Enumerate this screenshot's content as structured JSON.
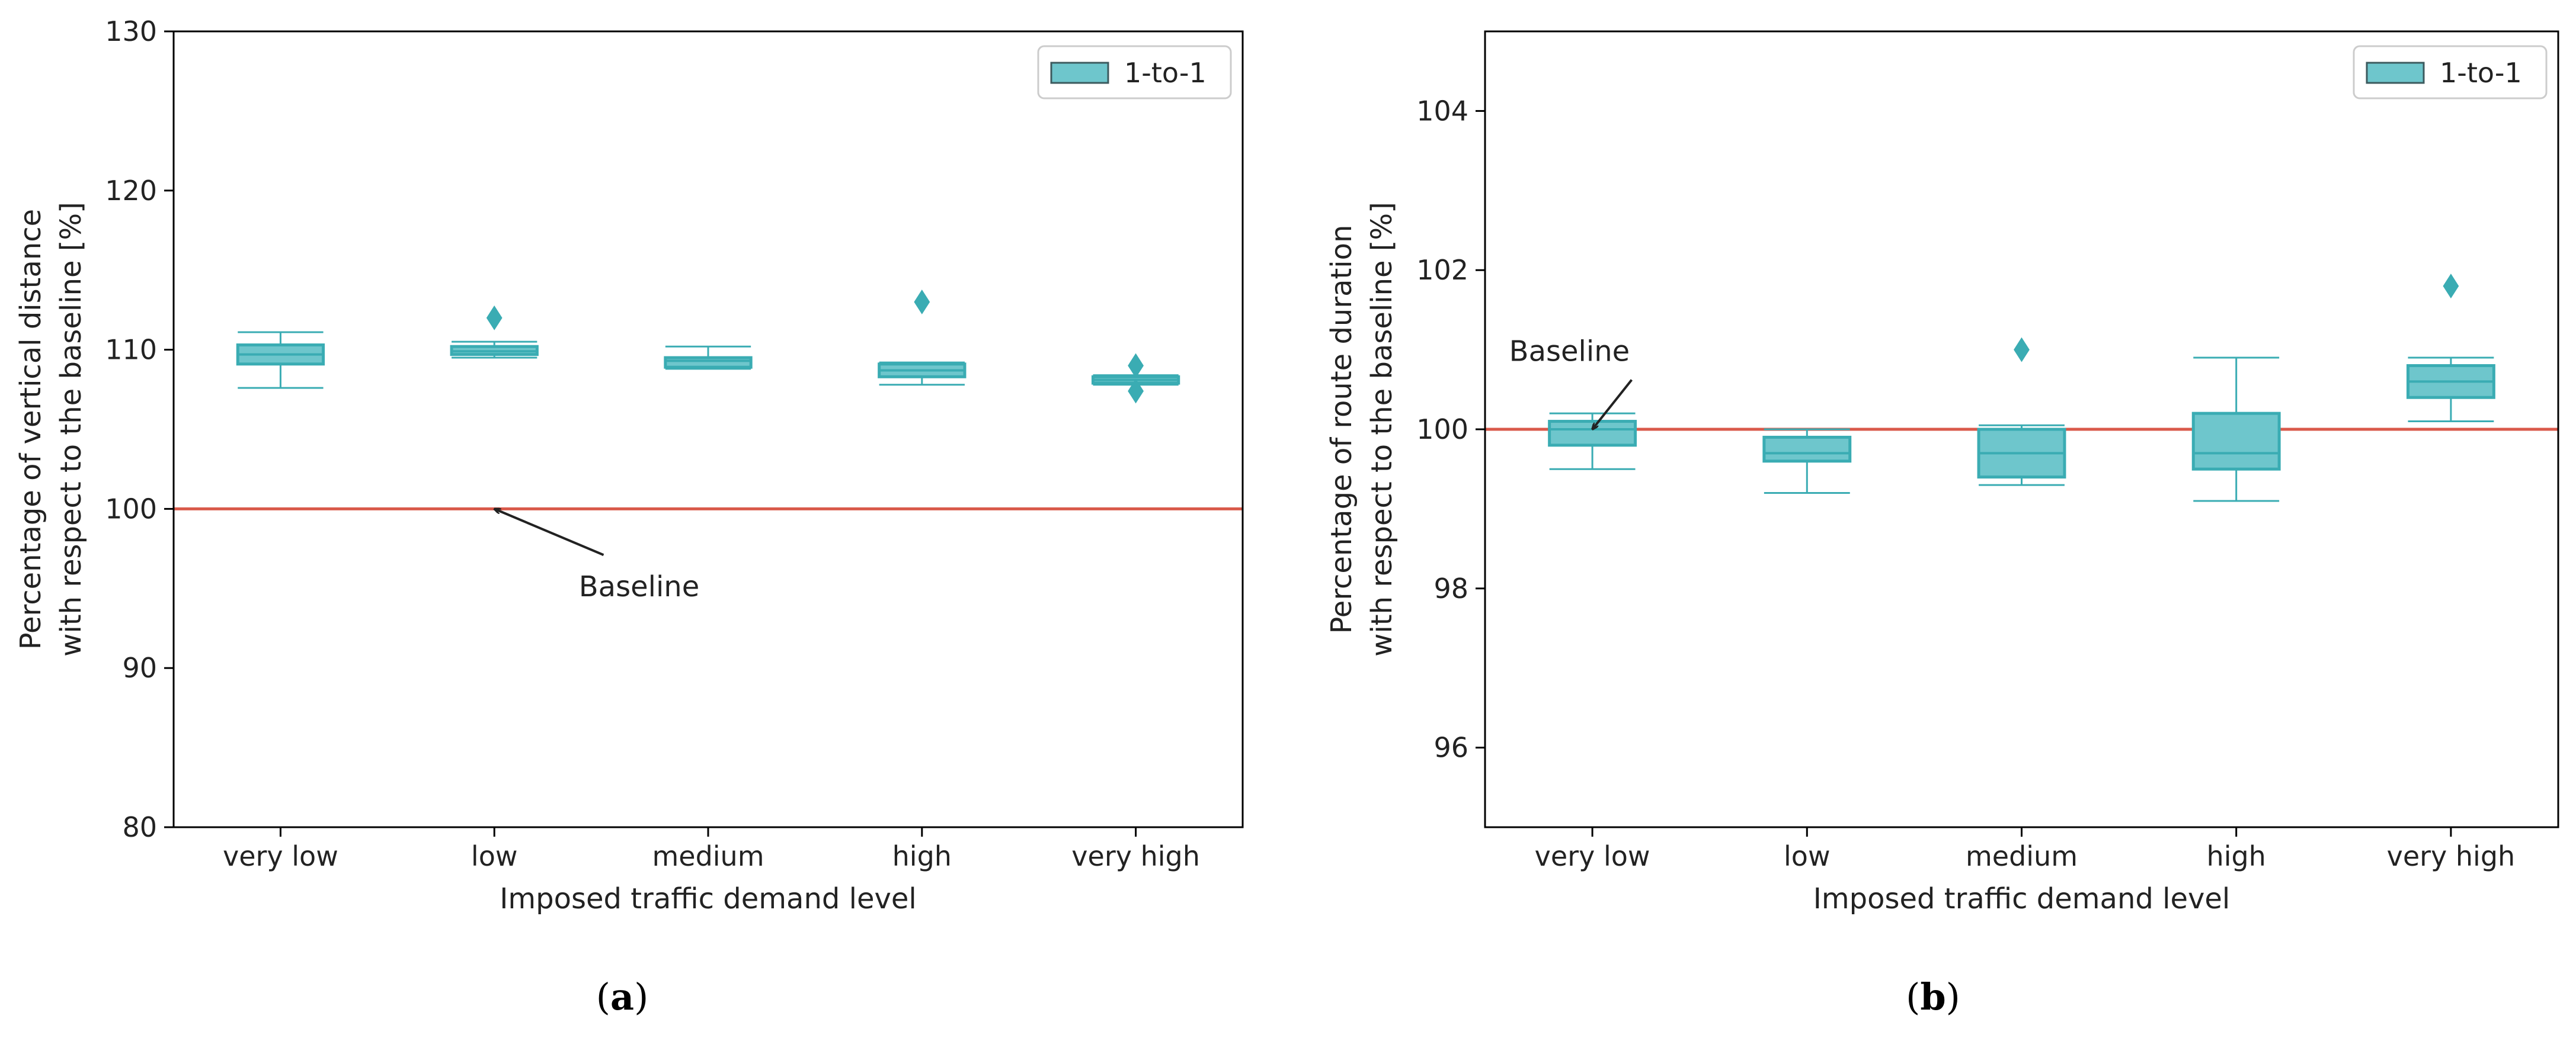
{
  "colors": {
    "box_fill": "#6ec6cc",
    "box_edge": "#3aacb3",
    "baseline": "#d9594a",
    "median_gray": "#888888"
  },
  "chart_data": [
    {
      "panel": "(a)",
      "type": "box",
      "xlabel": "Imposed traffic demand level",
      "ylabel_lines": [
        "Percentage of vertical distance",
        "with respect to the baseline [%]"
      ],
      "ylim": [
        80,
        130
      ],
      "yticks": [
        80,
        90,
        100,
        110,
        120,
        130
      ],
      "categories": [
        "very low",
        "low",
        "medium",
        "high",
        "very high"
      ],
      "legend": "1-to-1",
      "baseline_value": 100,
      "annotation": {
        "text": "Baseline",
        "points_to": {
          "category_pos": 1.5,
          "y": 100
        },
        "text_at": {
          "category_pos": 1.9,
          "y": 94.5
        }
      },
      "boxes": [
        {
          "whislo": 107.6,
          "q1": 109.1,
          "med": 109.7,
          "q3": 110.3,
          "whishi": 111.1,
          "fliers": []
        },
        {
          "whislo": 109.5,
          "q1": 109.7,
          "med": 109.9,
          "q3": 110.2,
          "whishi": 110.5,
          "fliers": [
            112.0
          ]
        },
        {
          "whislo": 108.8,
          "q1": 108.9,
          "med": 109.3,
          "q3": 109.5,
          "whishi": 110.2,
          "fliers": []
        },
        {
          "whislo": 107.8,
          "q1": 108.3,
          "med": 108.7,
          "q3": 109.1,
          "whishi": 109.2,
          "fliers": [
            113.0
          ]
        },
        {
          "whislo": 107.8,
          "q1": 107.9,
          "med": 108.1,
          "q3": 108.3,
          "whishi": 108.4,
          "fliers": [
            109.0,
            107.4
          ]
        }
      ]
    },
    {
      "panel": "(b)",
      "type": "box",
      "xlabel": "Imposed traffic demand level",
      "ylabel_lines": [
        "Percentage of route duration",
        "with respect to the baseline [%]"
      ],
      "ylim": [
        95,
        105
      ],
      "yticks": [
        96,
        98,
        100,
        102,
        104
      ],
      "categories": [
        "very low",
        "low",
        "medium",
        "high",
        "very high"
      ],
      "legend": "1-to-1",
      "baseline_value": 100,
      "annotation": {
        "text": "Baseline",
        "points_to": {
          "category_pos": 0.5,
          "y": 100.0
        },
        "text_at": {
          "category_pos": 0.2,
          "y": 100.8
        }
      },
      "boxes": [
        {
          "whislo": 99.5,
          "q1": 99.8,
          "med": 100.0,
          "q3": 100.1,
          "whishi": 100.2,
          "fliers": []
        },
        {
          "whislo": 99.2,
          "q1": 99.6,
          "med": 99.7,
          "q3": 99.9,
          "whishi": 100.0,
          "fliers": []
        },
        {
          "whislo": 99.3,
          "q1": 99.4,
          "med": 99.7,
          "q3": 100.0,
          "whishi": 100.05,
          "fliers": [
            101.0
          ]
        },
        {
          "whislo": 99.1,
          "q1": 99.5,
          "med": 99.7,
          "q3": 100.2,
          "whishi": 100.9,
          "fliers": []
        },
        {
          "whislo": 100.1,
          "q1": 100.4,
          "med": 100.6,
          "q3": 100.8,
          "whishi": 100.9,
          "fliers": [
            101.8
          ]
        }
      ]
    }
  ]
}
